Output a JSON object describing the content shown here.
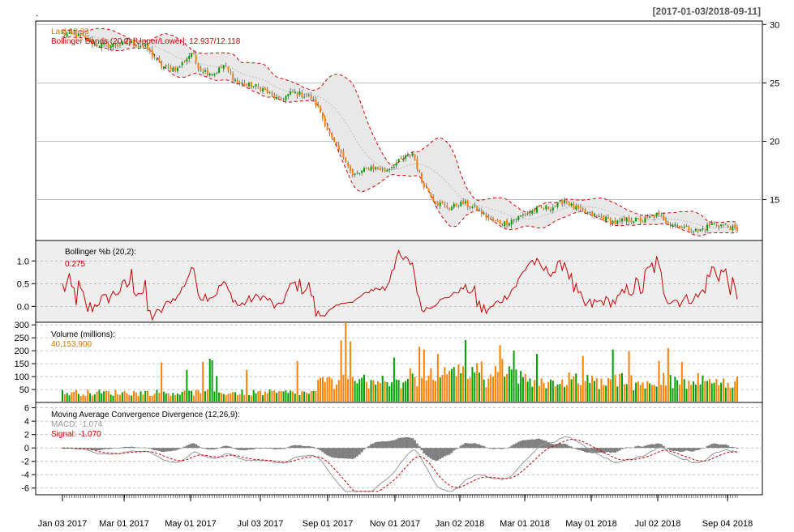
{
  "chart_data": {
    "type": "candlestick",
    "dot": ".",
    "date_range": "[2017-01-03/2018-09-11]",
    "x_labels": [
      "Jan 03 2017",
      "Mar 01 2017",
      "May 01 2017",
      "Jul 03 2017",
      "Sep 01 2017",
      "Nov 01 2017",
      "Jan 02 2018",
      "Mar 01 2018",
      "May 01 2018",
      "Jul 02 2018",
      "Sep 04 2018"
    ],
    "price_panel": {
      "last_label": "Last 12.33",
      "bbands_label": "Bollinger Bands (20,2) [Upper/Lower]: 12.937/12.118",
      "y_ticks": [
        15,
        20,
        25,
        30
      ],
      "ylim": [
        11.5,
        30.3
      ],
      "anchors": [
        [
          0,
          29.2
        ],
        [
          8,
          29.0
        ],
        [
          14,
          28.3
        ],
        [
          20,
          28.2
        ],
        [
          30,
          28.4
        ],
        [
          36,
          28.1
        ],
        [
          43,
          26.4
        ],
        [
          50,
          26.2
        ],
        [
          56,
          27.6
        ],
        [
          60,
          26.1
        ],
        [
          66,
          25.8
        ],
        [
          70,
          26.5
        ],
        [
          76,
          25.0
        ],
        [
          86,
          24.6
        ],
        [
          94,
          23.5
        ],
        [
          100,
          24.2
        ],
        [
          108,
          23.8
        ],
        [
          112,
          22.5
        ],
        [
          117,
          20.1
        ],
        [
          121,
          18.9
        ],
        [
          123,
          18.5
        ],
        [
          126,
          17.0
        ],
        [
          134,
          17.8
        ],
        [
          140,
          17.5
        ],
        [
          148,
          18.5
        ],
        [
          152,
          19.0
        ],
        [
          156,
          16.6
        ],
        [
          162,
          14.8
        ],
        [
          168,
          14.3
        ],
        [
          174,
          14.7
        ],
        [
          180,
          14.2
        ],
        [
          186,
          13.2
        ],
        [
          192,
          13.0
        ],
        [
          198,
          13.5
        ],
        [
          206,
          14.2
        ],
        [
          214,
          14.4
        ],
        [
          218,
          15.0
        ],
        [
          222,
          14.3
        ],
        [
          228,
          13.8
        ],
        [
          234,
          13.5
        ],
        [
          240,
          13.0
        ],
        [
          246,
          13.3
        ],
        [
          252,
          13.2
        ],
        [
          258,
          13.7
        ],
        [
          264,
          13.0
        ],
        [
          270,
          12.6
        ],
        [
          276,
          12.3
        ],
        [
          282,
          12.9
        ],
        [
          288,
          12.8
        ],
        [
          293,
          12.33
        ]
      ]
    },
    "pctb_panel": {
      "title": "Bollinger %b (20,2):",
      "value_label": "0.275",
      "y_ticks": [
        "0.0",
        "0.5",
        "1.0"
      ],
      "ylim": [
        -0.35,
        1.45
      ]
    },
    "volume_panel": {
      "title": "Volume (millions):",
      "value_label": "40,153,900",
      "y_ticks": [
        50,
        100,
        150,
        200,
        250,
        300
      ],
      "ylim": [
        0,
        310
      ]
    },
    "macd_panel": {
      "title": "Moving Average Convergence Divergence (12,26,9):",
      "macd_label": "MACD: -1.074",
      "signal_label": "Signal: -1.070",
      "y_ticks": [
        -6,
        -4,
        -2,
        0,
        2,
        4,
        6
      ],
      "ylim": [
        -7,
        6.8
      ]
    },
    "colors": {
      "up": "#00a000",
      "down": "#ff8000",
      "band": "#dd0000",
      "band_fill": "#e8e8e8",
      "pctb": "#cc0000",
      "macd_line": "#999999",
      "signal_line": "#cc0000",
      "histogram": "#808080"
    }
  }
}
